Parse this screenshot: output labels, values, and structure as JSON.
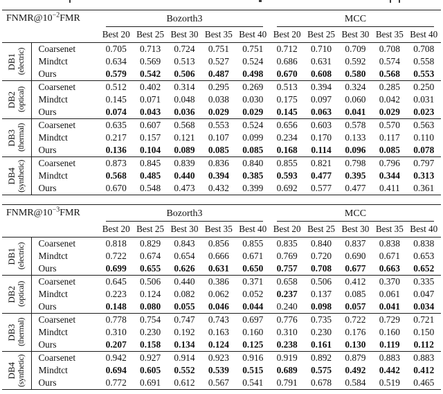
{
  "tables": [
    {
      "id": "fnmr-1e-2-table",
      "corner": {
        "prefix": "FNMR@10",
        "exponent": "−2",
        "suffix": "FMR"
      },
      "col_groups": [
        "Bozorth3",
        "MCC"
      ],
      "sub_headers": [
        "Best 20",
        "Best 25",
        "Best 30",
        "Best 35",
        "Best 40",
        "Best 20",
        "Best 25",
        "Best 30",
        "Best 35",
        "Best 40"
      ],
      "groups": [
        {
          "db": "DB1",
          "modality": "(electric)",
          "rows": [
            {
              "method": "Coarsenet",
              "values": [
                "0.705",
                "0.713",
                "0.724",
                "0.751",
                "0.751",
                "0.712",
                "0.710",
                "0.709",
                "0.708",
                "0.708"
              ],
              "bold": [
                0,
                0,
                0,
                0,
                0,
                0,
                0,
                0,
                0,
                0
              ]
            },
            {
              "method": "Mindtct",
              "values": [
                "0.634",
                "0.569",
                "0.513",
                "0.527",
                "0.524",
                "0.686",
                "0.631",
                "0.592",
                "0.574",
                "0.558"
              ],
              "bold": [
                0,
                0,
                0,
                0,
                0,
                0,
                0,
                0,
                0,
                0
              ]
            },
            {
              "method": "Ours",
              "values": [
                "0.579",
                "0.542",
                "0.506",
                "0.487",
                "0.498",
                "0.670",
                "0.608",
                "0.580",
                "0.568",
                "0.553"
              ],
              "bold": [
                1,
                1,
                1,
                1,
                1,
                1,
                1,
                1,
                1,
                1
              ]
            }
          ]
        },
        {
          "db": "DB2",
          "modality": "(optical)",
          "rows": [
            {
              "method": "Coarsenet",
              "values": [
                "0.512",
                "0.402",
                "0.314",
                "0.295",
                "0.269",
                "0.513",
                "0.394",
                "0.324",
                "0.285",
                "0.250"
              ],
              "bold": [
                0,
                0,
                0,
                0,
                0,
                0,
                0,
                0,
                0,
                0
              ]
            },
            {
              "method": "Mindtct",
              "values": [
                "0.145",
                "0.071",
                "0.048",
                "0.038",
                "0.030",
                "0.175",
                "0.097",
                "0.060",
                "0.042",
                "0.031"
              ],
              "bold": [
                0,
                0,
                0,
                0,
                0,
                0,
                0,
                0,
                0,
                0
              ]
            },
            {
              "method": "Ours",
              "values": [
                "0.074",
                "0.043",
                "0.036",
                "0.029",
                "0.029",
                "0.145",
                "0.063",
                "0.041",
                "0.029",
                "0.023"
              ],
              "bold": [
                1,
                1,
                1,
                1,
                1,
                1,
                1,
                1,
                1,
                1
              ]
            }
          ]
        },
        {
          "db": "DB3",
          "modality": "(thermal)",
          "rows": [
            {
              "method": "Coarsenet",
              "values": [
                "0.635",
                "0.607",
                "0.568",
                "0.553",
                "0.524",
                "0.656",
                "0.603",
                "0.578",
                "0.570",
                "0.563"
              ],
              "bold": [
                0,
                0,
                0,
                0,
                0,
                0,
                0,
                0,
                0,
                0
              ]
            },
            {
              "method": "Mindtct",
              "values": [
                "0.217",
                "0.157",
                "0.121",
                "0.107",
                "0.099",
                "0.234",
                "0.170",
                "0.133",
                "0.117",
                "0.110"
              ],
              "bold": [
                0,
                0,
                0,
                0,
                0,
                0,
                0,
                0,
                0,
                0
              ]
            },
            {
              "method": "Ours",
              "values": [
                "0.136",
                "0.104",
                "0.089",
                "0.085",
                "0.085",
                "0.168",
                "0.114",
                "0.096",
                "0.085",
                "0.078"
              ],
              "bold": [
                1,
                1,
                1,
                1,
                1,
                1,
                1,
                1,
                1,
                1
              ]
            }
          ]
        },
        {
          "db": "DB4",
          "modality": "(synthetic)",
          "rows": [
            {
              "method": "Coarsenet",
              "values": [
                "0.873",
                "0.845",
                "0.839",
                "0.836",
                "0.840",
                "0.855",
                "0.821",
                "0.798",
                "0.796",
                "0.797"
              ],
              "bold": [
                0,
                0,
                0,
                0,
                0,
                0,
                0,
                0,
                0,
                0
              ]
            },
            {
              "method": "Mindtct",
              "values": [
                "0.568",
                "0.485",
                "0.440",
                "0.394",
                "0.385",
                "0.593",
                "0.477",
                "0.395",
                "0.344",
                "0.313"
              ],
              "bold": [
                1,
                1,
                1,
                1,
                1,
                1,
                1,
                1,
                1,
                1
              ]
            },
            {
              "method": "Ours",
              "values": [
                "0.670",
                "0.548",
                "0.473",
                "0.432",
                "0.399",
                "0.692",
                "0.577",
                "0.477",
                "0.411",
                "0.361"
              ],
              "bold": [
                0,
                0,
                0,
                0,
                0,
                0,
                0,
                0,
                0,
                0
              ]
            }
          ]
        }
      ]
    },
    {
      "id": "fnmr-1e-3-table",
      "corner": {
        "prefix": "FNMR@10",
        "exponent": "−3",
        "suffix": "FMR"
      },
      "col_groups": [
        "Bozorth3",
        "MCC"
      ],
      "sub_headers": [
        "Best 20",
        "Best 25",
        "Best 30",
        "Best 35",
        "Best 40",
        "Best 20",
        "Best 25",
        "Best 30",
        "Best 35",
        "Best 40"
      ],
      "groups": [
        {
          "db": "DB1",
          "modality": "(electric)",
          "rows": [
            {
              "method": "Coarsenet",
              "values": [
                "0.818",
                "0.829",
                "0.843",
                "0.856",
                "0.855",
                "0.835",
                "0.840",
                "0.837",
                "0.838",
                "0.838"
              ],
              "bold": [
                0,
                0,
                0,
                0,
                0,
                0,
                0,
                0,
                0,
                0
              ]
            },
            {
              "method": "Mindtct",
              "values": [
                "0.722",
                "0.674",
                "0.654",
                "0.666",
                "0.671",
                "0.769",
                "0.720",
                "0.690",
                "0.671",
                "0.653"
              ],
              "bold": [
                0,
                0,
                0,
                0,
                0,
                0,
                0,
                0,
                0,
                0
              ]
            },
            {
              "method": "Ours",
              "values": [
                "0.699",
                "0.655",
                "0.626",
                "0.631",
                "0.650",
                "0.757",
                "0.708",
                "0.677",
                "0.663",
                "0.652"
              ],
              "bold": [
                1,
                1,
                1,
                1,
                1,
                1,
                1,
                1,
                1,
                1
              ]
            }
          ]
        },
        {
          "db": "DB2",
          "modality": "(optical)",
          "rows": [
            {
              "method": "Coarsenet",
              "values": [
                "0.645",
                "0.506",
                "0.440",
                "0.386",
                "0.371",
                "0.658",
                "0.506",
                "0.412",
                "0.370",
                "0.335"
              ],
              "bold": [
                0,
                0,
                0,
                0,
                0,
                0,
                0,
                0,
                0,
                0
              ]
            },
            {
              "method": "Mindtct",
              "values": [
                "0.223",
                "0.124",
                "0.082",
                "0.062",
                "0.052",
                "0.237",
                "0.137",
                "0.085",
                "0.061",
                "0.047"
              ],
              "bold": [
                0,
                0,
                0,
                0,
                0,
                1,
                0,
                0,
                0,
                0
              ]
            },
            {
              "method": "Ours",
              "values": [
                "0.148",
                "0.080",
                "0.055",
                "0.046",
                "0.044",
                "0.240",
                "0.098",
                "0.057",
                "0.041",
                "0.034"
              ],
              "bold": [
                1,
                1,
                1,
                1,
                1,
                0,
                1,
                1,
                1,
                1
              ]
            }
          ]
        },
        {
          "db": "DB3",
          "modality": "(thermal)",
          "rows": [
            {
              "method": "Coarsenet",
              "values": [
                "0.778",
                "0.754",
                "0.747",
                "0.743",
                "0.697",
                "0.776",
                "0.735",
                "0.722",
                "0.729",
                "0.721"
              ],
              "bold": [
                0,
                0,
                0,
                0,
                0,
                0,
                0,
                0,
                0,
                0
              ]
            },
            {
              "method": "Mindtct",
              "values": [
                "0.310",
                "0.230",
                "0.192",
                "0.163",
                "0.160",
                "0.310",
                "0.230",
                "0.176",
                "0.160",
                "0.150"
              ],
              "bold": [
                0,
                0,
                0,
                0,
                0,
                0,
                0,
                0,
                0,
                0
              ]
            },
            {
              "method": "Ours",
              "values": [
                "0.207",
                "0.158",
                "0.134",
                "0.124",
                "0.125",
                "0.238",
                "0.161",
                "0.130",
                "0.119",
                "0.112"
              ],
              "bold": [
                1,
                1,
                1,
                1,
                1,
                1,
                1,
                1,
                1,
                1
              ]
            }
          ]
        },
        {
          "db": "DB4",
          "modality": "(synthetic)",
          "rows": [
            {
              "method": "Coarsenet",
              "values": [
                "0.942",
                "0.927",
                "0.914",
                "0.923",
                "0.916",
                "0.919",
                "0.892",
                "0.879",
                "0.883",
                "0.883"
              ],
              "bold": [
                0,
                0,
                0,
                0,
                0,
                0,
                0,
                0,
                0,
                0
              ]
            },
            {
              "method": "Mindtct",
              "values": [
                "0.694",
                "0.605",
                "0.552",
                "0.539",
                "0.515",
                "0.689",
                "0.575",
                "0.492",
                "0.442",
                "0.412"
              ],
              "bold": [
                1,
                1,
                1,
                1,
                1,
                1,
                1,
                1,
                1,
                1
              ]
            },
            {
              "method": "Ours",
              "values": [
                "0.772",
                "0.691",
                "0.612",
                "0.567",
                "0.541",
                "0.791",
                "0.678",
                "0.584",
                "0.519",
                "0.465"
              ],
              "bold": [
                0,
                0,
                0,
                0,
                0,
                0,
                0,
                0,
                0,
                0
              ]
            }
          ]
        }
      ]
    }
  ]
}
